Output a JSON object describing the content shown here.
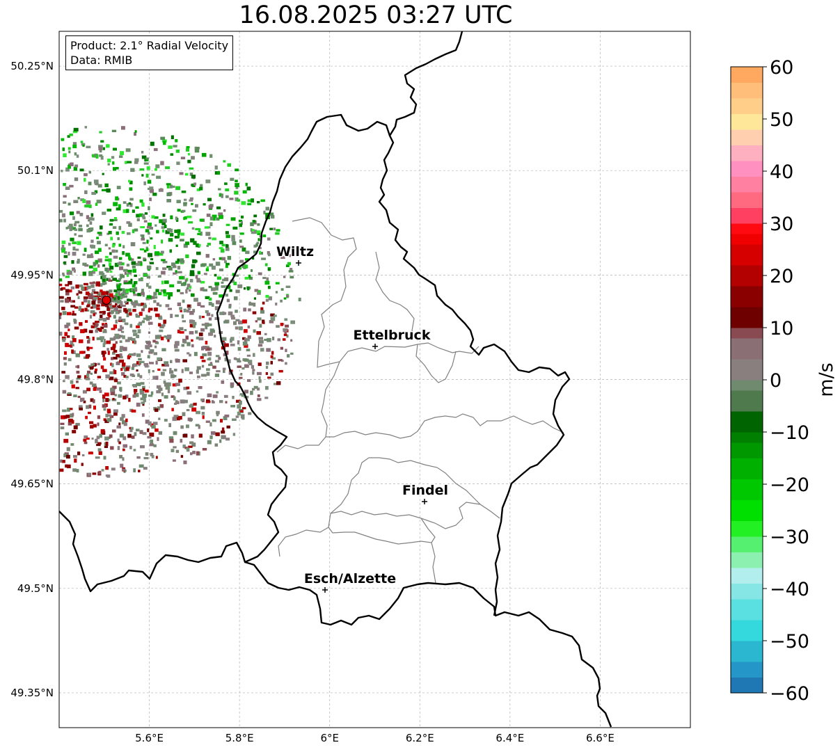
{
  "title": "16.08.2025 03:27 UTC",
  "info": {
    "product": "Product: 2.1° Radial Velocity",
    "data": "Data: RMIB"
  },
  "map": {
    "lon_range": [
      5.4,
      6.8
    ],
    "lat_range": [
      49.3,
      50.3
    ],
    "lat_ticks": [
      {
        "value": 50.25,
        "label": "50.25°N"
      },
      {
        "value": 50.1,
        "label": "50.1°N"
      },
      {
        "value": 49.95,
        "label": "49.95°N"
      },
      {
        "value": 49.8,
        "label": "49.8°N"
      },
      {
        "value": 49.65,
        "label": "49.65°N"
      },
      {
        "value": 49.5,
        "label": "49.5°N"
      },
      {
        "value": 49.35,
        "label": "49.35°N"
      }
    ],
    "lon_ticks": [
      {
        "value": 5.6,
        "label": "5.6°E"
      },
      {
        "value": 5.8,
        "label": "5.8°E"
      },
      {
        "value": 6.0,
        "label": "6°E"
      },
      {
        "value": 6.2,
        "label": "6.2°E"
      },
      {
        "value": 6.4,
        "label": "6.4°E"
      },
      {
        "value": 6.6,
        "label": "6.6°E"
      }
    ],
    "gridlines": true,
    "radar_site": {
      "lon": 5.505,
      "lat": 49.914
    },
    "cities": [
      {
        "name": "Wiltz",
        "lon": 5.933,
        "lat": 49.966
      },
      {
        "name": "Ettelbruck",
        "lon": 6.104,
        "lat": 49.848
      },
      {
        "name": "Findel",
        "lon": 6.211,
        "lat": 49.626
      },
      {
        "name": "Esch/Alzette",
        "lon": 5.98,
        "lat": 49.496
      }
    ]
  },
  "colorbar": {
    "unit": "m/s",
    "min": -60,
    "max": 60,
    "ticks": [
      {
        "value": 60,
        "label": "60"
      },
      {
        "value": 50,
        "label": "50"
      },
      {
        "value": 40,
        "label": "40"
      },
      {
        "value": 30,
        "label": "30"
      },
      {
        "value": 20,
        "label": "20"
      },
      {
        "value": 10,
        "label": "10"
      },
      {
        "value": 0,
        "label": "0"
      },
      {
        "value": -10,
        "label": "−10"
      },
      {
        "value": -20,
        "label": "−20"
      },
      {
        "value": -30,
        "label": "−30"
      },
      {
        "value": -40,
        "label": "−40"
      },
      {
        "value": -50,
        "label": "−50"
      },
      {
        "value": -60,
        "label": "−60"
      }
    ]
  },
  "colors": {
    "border": "#000000",
    "canton_lines": "#808080",
    "grid": "#b0b0b0",
    "radar_site": "#e00000"
  }
}
